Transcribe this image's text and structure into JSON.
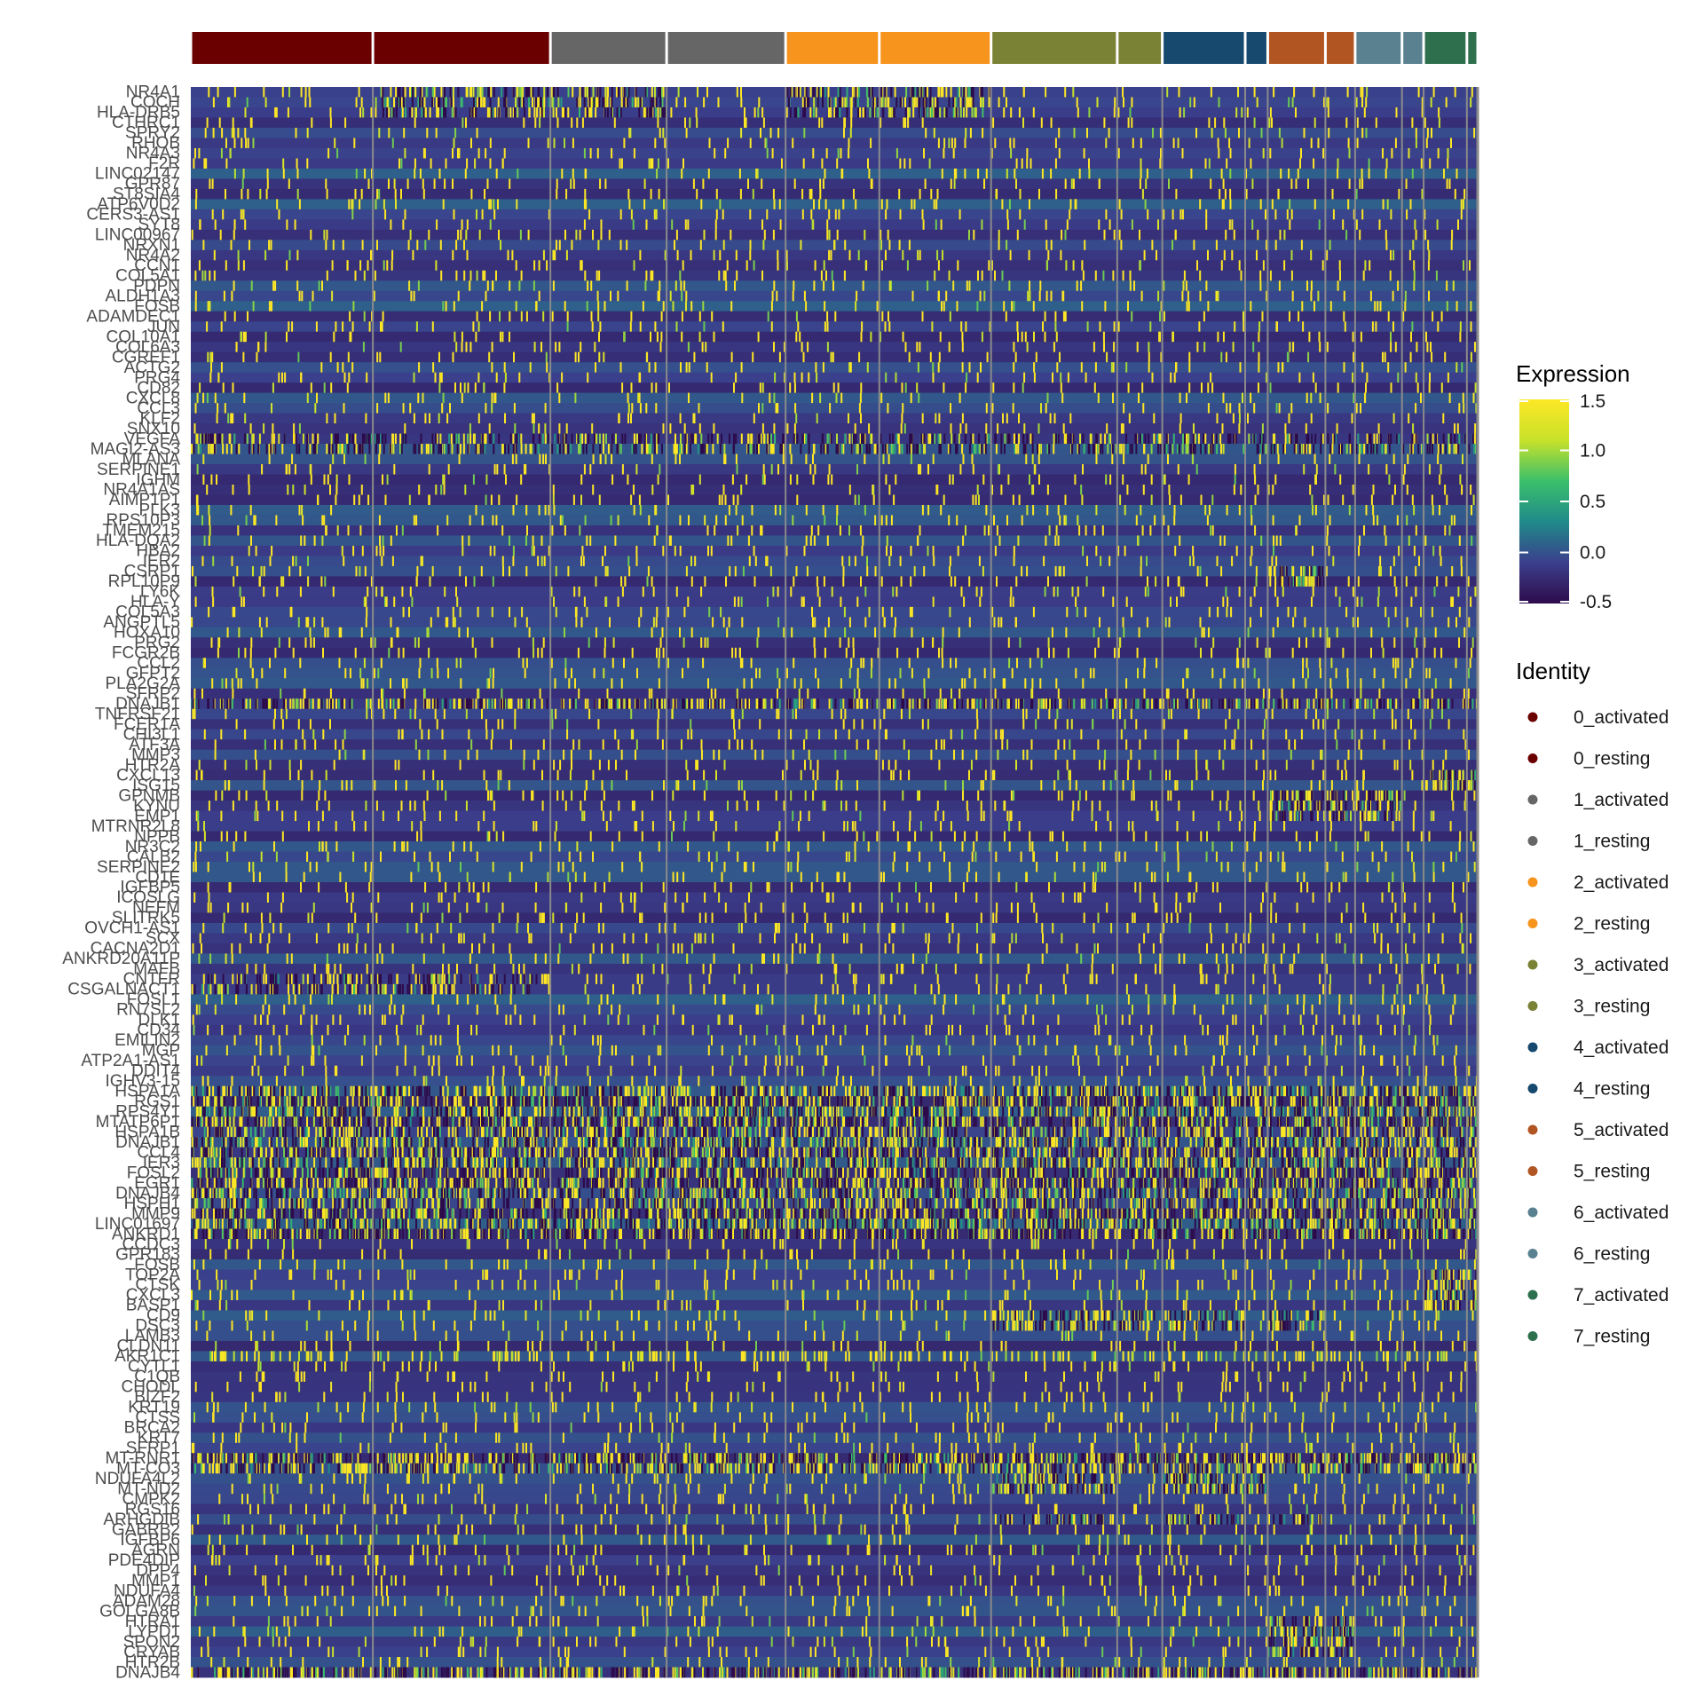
{
  "chart_data": {
    "type": "heatmap",
    "title": "",
    "xlabel": "",
    "ylabel": "",
    "genes": [
      "NR4A1",
      "COCH",
      "HLA-DRB5",
      "CTHRC1",
      "SPRY2",
      "RHOB",
      "NR4A3",
      "F2R",
      "LINC02147",
      "GPR87",
      "ST8SIA4",
      "ATP6V0D2",
      "CERS3-AS1",
      "SYT8",
      "LINC00967",
      "NRXN1",
      "NR4A2",
      "CCN1",
      "COL5A1",
      "PDPN",
      "ALDH1A3",
      "FOSB",
      "ADAMDEC1",
      "JUN",
      "COL10A1",
      "COL6A3",
      "CGREF1",
      "ACTG2",
      "PRG4",
      "CD82",
      "CXCL8",
      "CCL3",
      "KLF2",
      "SNX10",
      "VEGFA",
      "MAGI2-AS3",
      "MLANA",
      "SERPINE1",
      "IGHM",
      "NR4A1AS",
      "AIMP1P1",
      "PLK3",
      "RPS10P3",
      "TMEM215",
      "HLA-DQA2",
      "HBA2",
      "IER2",
      "CSRP1",
      "RPL10P9",
      "LY6K",
      "HLA-Y",
      "COL5A3",
      "ANGPTL5",
      "HOXA10",
      "PRG2",
      "FCGR2B",
      "CCL2",
      "GFPT2",
      "PLA2G2A",
      "SFRP2",
      "DNAJB1",
      "TNFRSF21",
      "FCER1A",
      "CHI3L1",
      "ATF3A",
      "MMP3",
      "HTR2A",
      "CXCL13",
      "ISG15",
      "GPNMB",
      "KYNU",
      "EMP1",
      "MTRNR2L8",
      "NPPB",
      "NR3C2",
      "CALB2",
      "SERPINE2",
      "CD1E",
      "IGFBP5",
      "ICOSLG",
      "NEFM",
      "SLITRK5",
      "OVCH1-AS1",
      "SCX",
      "CACNA2D1",
      "ANKRD20A11P",
      "MAFB",
      "CNTFR",
      "CSGALNACT1",
      "FOSL1",
      "RN7SL2",
      "DLK1",
      "CD34",
      "EMILIN2",
      "MGP",
      "ATP2A1-AS1",
      "DDIT4",
      "IGHV3-15",
      "HSPA1A",
      "RGS1",
      "RPS4Y1",
      "MTATP6P1",
      "HSPA1B",
      "DNAJB1",
      "CCL4",
      "IER3",
      "FOSL2",
      "EGR1",
      "DNAJB4",
      "HSPH1",
      "MMP9",
      "LINC01697",
      "ANKRD1",
      "CCDC3",
      "GPR183",
      "FOSB",
      "TOP2A",
      "CTSK",
      "CXCL3",
      "BASP1",
      "CD9",
      "DSC3",
      "LAMB3",
      "CLDN11",
      "AKR1C1",
      "CYTL1",
      "C1QB",
      "CHODL",
      "BIZF2",
      "KRT19",
      "CTSS",
      "BRCA2",
      "KRT7",
      "SFRP1",
      "MT-RNR1",
      "MT-CO3",
      "NDUFA4L2",
      "MT-ND2",
      "CMPK2",
      "RGS16",
      "ARHGDIB",
      "GABRB2",
      "IGFBP6",
      "AGRN",
      "PDE4DIP",
      "DPP4",
      "MMP1",
      "NDUFA4",
      "ADAM28",
      "GOLGA8B",
      "HTRA1",
      "LYPD1",
      "SPON2",
      "CRYAB",
      "HTR2B",
      "DNAJB4"
    ],
    "scale": {
      "name": "Expression",
      "min": -0.5,
      "max": 1.5,
      "ticks": [
        1.5,
        1.0,
        0.5,
        0.0,
        -0.5
      ],
      "tick_labels": [
        "1.5",
        "1.0",
        "0.5",
        "0.0",
        "-0.5"
      ],
      "colors": [
        "#2d0b4b",
        "#3b3f8c",
        "#1f8a8a",
        "#3bbf6a",
        "#c8e22a",
        "#fde725"
      ]
    },
    "groups": [
      {
        "name": "0_activated",
        "color": "#6b0000",
        "cells": 202
      },
      {
        "name": "0_resting",
        "color": "#6b0000",
        "cells": 197
      },
      {
        "name": "1_activated",
        "color": "#666666",
        "cells": 129
      },
      {
        "name": "1_resting",
        "color": "#666666",
        "cells": 132
      },
      {
        "name": "2_activated",
        "color": "#f7941d",
        "cells": 104
      },
      {
        "name": "2_resting",
        "color": "#f7941d",
        "cells": 124
      },
      {
        "name": "3_activated",
        "color": "#7a8236",
        "cells": 140
      },
      {
        "name": "3_resting",
        "color": "#7a8236",
        "cells": 50
      },
      {
        "name": "4_activated",
        "color": "#17496e",
        "cells": 92
      },
      {
        "name": "4_resting",
        "color": "#17496e",
        "cells": 25
      },
      {
        "name": "5_activated",
        "color": "#b15622",
        "cells": 64
      },
      {
        "name": "5_resting",
        "color": "#b15622",
        "cells": 33
      },
      {
        "name": "6_activated",
        "color": "#59818f",
        "cells": 52
      },
      {
        "name": "6_resting",
        "color": "#59818f",
        "cells": 24
      },
      {
        "name": "7_activated",
        "color": "#2e6f4e",
        "cells": 48
      },
      {
        "name": "7_resting",
        "color": "#2e6f4e",
        "cells": 12
      }
    ],
    "legend": {
      "title": "Identity",
      "position": "right",
      "items": [
        "0_activated",
        "0_resting",
        "1_activated",
        "1_resting",
        "2_activated",
        "2_resting",
        "3_activated",
        "3_resting",
        "4_activated",
        "4_resting",
        "5_activated",
        "5_resting",
        "6_activated",
        "6_resting",
        "7_activated",
        "7_resting"
      ]
    },
    "high_blocks": [
      {
        "genes": [
          "HSPA1A",
          "RGS1",
          "RPS4Y1",
          "MTATP6P1",
          "HSPA1B",
          "DNAJB1",
          "CCL4",
          "IER3",
          "FOSL2",
          "EGR1",
          "DNAJB4",
          "HSPH1",
          "MMP9",
          "LINC01697",
          "ANKRD1"
        ],
        "groups": "all",
        "level": 0.55
      },
      {
        "genes": [
          "MT-RNR1",
          "MT-CO3"
        ],
        "groups": "all",
        "level": 0.6
      },
      {
        "genes": [
          "NR4A1",
          "COCH",
          "HLA-DRB5"
        ],
        "groups": [
          "0_resting",
          "1_activated",
          "2_activated",
          "2_resting"
        ],
        "level": 0.5
      },
      {
        "genes": [
          "CSRP1",
          "RPL10P9"
        ],
        "groups": [
          "5_activated"
        ],
        "level": 0.8
      },
      {
        "genes": [
          "GPNMB",
          "KYNU",
          "EMP1"
        ],
        "groups": [
          "5_activated",
          "5_resting",
          "6_activated"
        ],
        "level": 0.6
      },
      {
        "genes": [
          "CXCL13",
          "ISG15"
        ],
        "groups": [
          "7_activated",
          "7_resting"
        ],
        "level": 0.8
      },
      {
        "genes": [
          "TOP2A",
          "CTSK",
          "CXCL3",
          "BASP1"
        ],
        "groups": [
          "7_activated",
          "7_resting"
        ],
        "level": 0.8
      },
      {
        "genes": [
          "CD9",
          "DSC3"
        ],
        "groups": [
          "3_activated",
          "3_resting",
          "4_activated",
          "5_activated"
        ],
        "level": 0.5
      },
      {
        "genes": [
          "NDUFA4L2",
          "MT-ND2"
        ],
        "groups": [
          "3_activated",
          "4_activated",
          "4_resting"
        ],
        "level": 0.6
      },
      {
        "genes": [
          "HTRA1",
          "LYPD1",
          "SPON2",
          "CRYAB"
        ],
        "groups": [
          "5_activated",
          "5_resting"
        ],
        "level": 0.6
      },
      {
        "genes": [
          "VEGFA",
          "MAGI2-AS3"
        ],
        "groups": "all",
        "level": 0.35
      },
      {
        "genes": [
          "CNTFR",
          "CSGALNACT1"
        ],
        "groups": [
          "0_activated",
          "0_resting"
        ],
        "level": 0.35
      },
      {
        "genes": [
          "AKR1C1"
        ],
        "groups": "all",
        "level": 0.3
      },
      {
        "genes": [
          "ARHGDIB"
        ],
        "groups": [
          "3_activated",
          "4_activated",
          "5_activated"
        ],
        "level": 0.4
      }
    ]
  }
}
